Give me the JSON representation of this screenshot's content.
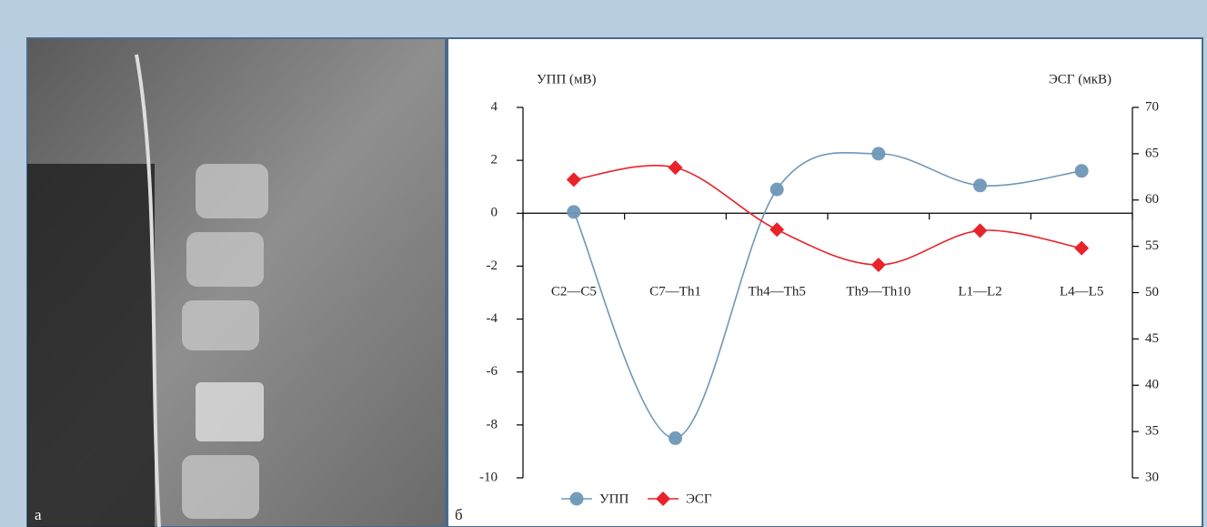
{
  "image_label": "а",
  "chart_label": "б",
  "chart_data": {
    "type": "line",
    "y_label": "УПП (мВ)",
    "y2_label": "ЭСГ (мкВ)",
    "categories": [
      "C2—C5",
      "C7—Th1",
      "Th4—Th5",
      "Th9—Th10",
      "L1—L2",
      "L4—L5"
    ],
    "series": [
      {
        "name": "УПП",
        "color": "#6f97b8",
        "marker": "circle",
        "values": [
          0.05,
          -8.5,
          0.9,
          2.25,
          1.05,
          1.6
        ]
      },
      {
        "name": "ЭСГ",
        "color": "#e8232a",
        "marker": "diamond",
        "axis": "y2",
        "values": [
          62.2,
          63.5,
          56.8,
          53.0,
          56.7,
          54.8
        ]
      }
    ],
    "ylim": [
      -10,
      4
    ],
    "yticks": [
      -10,
      -8,
      -6,
      -4,
      -2,
      0,
      2,
      4
    ],
    "y2lim": [
      30,
      70
    ],
    "y2ticks": [
      30,
      35,
      40,
      45,
      50,
      55,
      60,
      65,
      70
    ],
    "smooth": true,
    "legend": "bottom-left"
  }
}
